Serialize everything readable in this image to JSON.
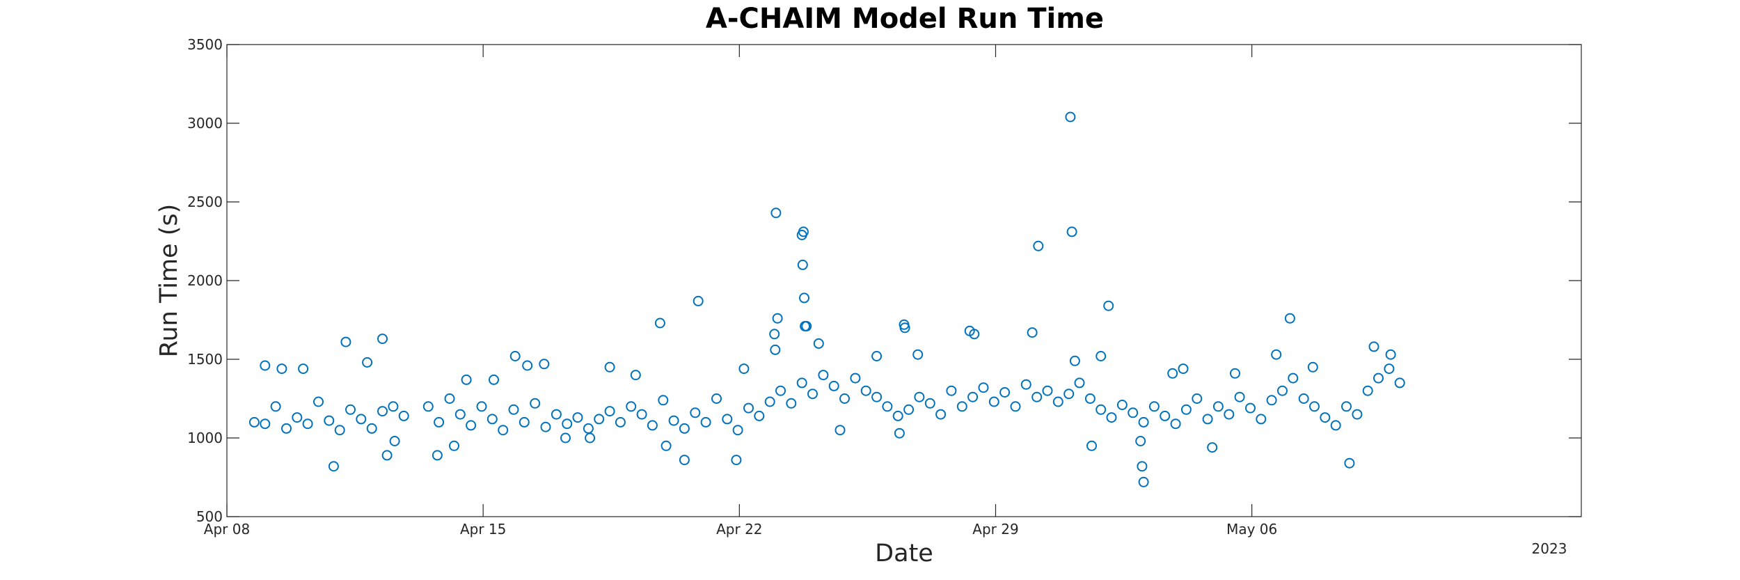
{
  "colors": {
    "marker": "#0072BD",
    "axis": "#262626",
    "background": "#ffffff"
  },
  "chart_data": {
    "type": "scatter",
    "title": "A-CHAIM Model Run Time",
    "xlabel": "Date",
    "ylabel": "Run Time (s)",
    "x_year_label": "2023",
    "xlim": [
      "2023-04-08",
      "2023-05-15"
    ],
    "ylim": [
      500,
      3500
    ],
    "x_ticks": [
      {
        "date": "2023-04-08",
        "label": "Apr 08"
      },
      {
        "date": "2023-04-15",
        "label": "Apr 15"
      },
      {
        "date": "2023-04-22",
        "label": "Apr 22"
      },
      {
        "date": "2023-04-29",
        "label": "Apr 29"
      },
      {
        "date": "2023-05-06",
        "label": "May 06"
      }
    ],
    "y_ticks": [
      500,
      1000,
      1500,
      2000,
      2500,
      3000,
      3500
    ],
    "marker": "open-circle",
    "grid": false,
    "legend": "none",
    "series": [
      {
        "points": [
          [
            "2023-04-08 18:00",
            1100
          ],
          [
            "2023-04-09 01:00",
            1090
          ],
          [
            "2023-04-09 08:00",
            1200
          ],
          [
            "2023-04-09 15:00",
            1060
          ],
          [
            "2023-04-09 22:00",
            1130
          ],
          [
            "2023-04-10 05:00",
            1090
          ],
          [
            "2023-04-10 12:00",
            1230
          ],
          [
            "2023-04-10 19:00",
            1110
          ],
          [
            "2023-04-11 02:00",
            1050
          ],
          [
            "2023-04-11 09:00",
            1180
          ],
          [
            "2023-04-11 16:00",
            1120
          ],
          [
            "2023-04-11 23:00",
            1060
          ],
          [
            "2023-04-12 06:00",
            1170
          ],
          [
            "2023-04-12 13:00",
            1200
          ],
          [
            "2023-04-12 20:00",
            1140
          ],
          [
            "2023-04-13 12:00",
            1200
          ],
          [
            "2023-04-13 19:00",
            1100
          ],
          [
            "2023-04-14 02:00",
            1250
          ],
          [
            "2023-04-14 09:00",
            1150
          ],
          [
            "2023-04-14 16:00",
            1080
          ],
          [
            "2023-04-14 23:00",
            1200
          ],
          [
            "2023-04-15 06:00",
            1120
          ],
          [
            "2023-04-15 13:00",
            1050
          ],
          [
            "2023-04-15 20:00",
            1180
          ],
          [
            "2023-04-16 03:00",
            1100
          ],
          [
            "2023-04-16 10:00",
            1220
          ],
          [
            "2023-04-16 17:00",
            1070
          ],
          [
            "2023-04-17 00:00",
            1150
          ],
          [
            "2023-04-17 07:00",
            1090
          ],
          [
            "2023-04-17 14:00",
            1130
          ],
          [
            "2023-04-17 21:00",
            1060
          ],
          [
            "2023-04-18 04:00",
            1120
          ],
          [
            "2023-04-18 11:00",
            1170
          ],
          [
            "2023-04-18 18:00",
            1100
          ],
          [
            "2023-04-19 01:00",
            1200
          ],
          [
            "2023-04-19 08:00",
            1150
          ],
          [
            "2023-04-19 15:00",
            1080
          ],
          [
            "2023-04-19 22:00",
            1240
          ],
          [
            "2023-04-20 05:00",
            1110
          ],
          [
            "2023-04-20 12:00",
            1060
          ],
          [
            "2023-04-20 19:00",
            1160
          ],
          [
            "2023-04-21 02:00",
            1100
          ],
          [
            "2023-04-21 09:00",
            1250
          ],
          [
            "2023-04-21 16:00",
            1120
          ],
          [
            "2023-04-21 23:00",
            1050
          ],
          [
            "2023-04-22 06:00",
            1190
          ],
          [
            "2023-04-22 13:00",
            1140
          ],
          [
            "2023-04-22 20:00",
            1230
          ],
          [
            "2023-04-23 03:00",
            1300
          ],
          [
            "2023-04-23 10:00",
            1220
          ],
          [
            "2023-04-23 17:00",
            1350
          ],
          [
            "2023-04-24 00:00",
            1280
          ],
          [
            "2023-04-24 07:00",
            1400
          ],
          [
            "2023-04-24 14:00",
            1330
          ],
          [
            "2023-04-24 21:00",
            1250
          ],
          [
            "2023-04-25 04:00",
            1380
          ],
          [
            "2023-04-25 11:00",
            1300
          ],
          [
            "2023-04-25 18:00",
            1260
          ],
          [
            "2023-04-26 01:00",
            1200
          ],
          [
            "2023-04-26 08:00",
            1140
          ],
          [
            "2023-04-26 15:00",
            1180
          ],
          [
            "2023-04-26 22:00",
            1260
          ],
          [
            "2023-04-27 05:00",
            1220
          ],
          [
            "2023-04-27 12:00",
            1150
          ],
          [
            "2023-04-27 19:00",
            1300
          ],
          [
            "2023-04-28 02:00",
            1200
          ],
          [
            "2023-04-28 09:00",
            1260
          ],
          [
            "2023-04-28 16:00",
            1320
          ],
          [
            "2023-04-28 23:00",
            1230
          ],
          [
            "2023-04-29 06:00",
            1290
          ],
          [
            "2023-04-29 13:00",
            1200
          ],
          [
            "2023-04-29 20:00",
            1340
          ],
          [
            "2023-04-30 03:00",
            1260
          ],
          [
            "2023-04-30 10:00",
            1300
          ],
          [
            "2023-04-30 17:00",
            1230
          ],
          [
            "2023-05-01 00:00",
            1280
          ],
          [
            "2023-05-01 07:00",
            1350
          ],
          [
            "2023-05-01 14:00",
            1250
          ],
          [
            "2023-05-01 21:00",
            1180
          ],
          [
            "2023-05-02 04:00",
            1130
          ],
          [
            "2023-05-02 11:00",
            1210
          ],
          [
            "2023-05-02 18:00",
            1160
          ],
          [
            "2023-05-03 01:00",
            1100
          ],
          [
            "2023-05-03 08:00",
            1200
          ],
          [
            "2023-05-03 15:00",
            1140
          ],
          [
            "2023-05-03 22:00",
            1090
          ],
          [
            "2023-05-04 05:00",
            1180
          ],
          [
            "2023-05-04 12:00",
            1250
          ],
          [
            "2023-05-04 19:00",
            1120
          ],
          [
            "2023-05-05 02:00",
            1200
          ],
          [
            "2023-05-05 09:00",
            1150
          ],
          [
            "2023-05-05 16:00",
            1260
          ],
          [
            "2023-05-05 23:00",
            1190
          ],
          [
            "2023-05-06 06:00",
            1120
          ],
          [
            "2023-05-06 13:00",
            1240
          ],
          [
            "2023-05-06 20:00",
            1300
          ],
          [
            "2023-05-07 03:00",
            1380
          ],
          [
            "2023-05-07 10:00",
            1250
          ],
          [
            "2023-05-07 17:00",
            1200
          ],
          [
            "2023-05-08 00:00",
            1130
          ],
          [
            "2023-05-08 07:00",
            1080
          ],
          [
            "2023-05-08 14:00",
            1200
          ],
          [
            "2023-05-08 21:00",
            1150
          ],
          [
            "2023-05-09 04:00",
            1300
          ],
          [
            "2023-05-09 11:00",
            1380
          ],
          [
            "2023-05-09 18:00",
            1440
          ],
          [
            "2023-05-10 01:00",
            1350
          ],
          [
            "2023-04-09 01:00",
            1460
          ],
          [
            "2023-04-09 12:00",
            1440
          ],
          [
            "2023-04-10 02:00",
            1440
          ],
          [
            "2023-04-10 22:00",
            820
          ],
          [
            "2023-04-11 06:00",
            1610
          ],
          [
            "2023-04-11 20:00",
            1480
          ],
          [
            "2023-04-12 06:00",
            1630
          ],
          [
            "2023-04-12 09:00",
            890
          ],
          [
            "2023-04-12 14:00",
            980
          ],
          [
            "2023-04-13 18:00",
            890
          ],
          [
            "2023-04-14 05:00",
            950
          ],
          [
            "2023-04-14 13:00",
            1370
          ],
          [
            "2023-04-15 07:00",
            1370
          ],
          [
            "2023-04-15 21:00",
            1520
          ],
          [
            "2023-04-16 05:00",
            1460
          ],
          [
            "2023-04-16 16:00",
            1470
          ],
          [
            "2023-04-17 06:00",
            1000
          ],
          [
            "2023-04-17 22:00",
            1000
          ],
          [
            "2023-04-18 11:00",
            1450
          ],
          [
            "2023-04-19 04:00",
            1400
          ],
          [
            "2023-04-19 20:00",
            1730
          ],
          [
            "2023-04-20 00:00",
            950
          ],
          [
            "2023-04-20 12:00",
            860
          ],
          [
            "2023-04-20 21:00",
            1870
          ],
          [
            "2023-04-21 22:00",
            860
          ],
          [
            "2023-04-22 03:00",
            1440
          ],
          [
            "2023-04-23 00:00",
            2430
          ],
          [
            "2023-04-22 23:00",
            1660
          ],
          [
            "2023-04-22 23:30",
            1560
          ],
          [
            "2023-04-23 01:00",
            1760
          ],
          [
            "2023-04-23 17:00",
            2290
          ],
          [
            "2023-04-23 18:00",
            2310
          ],
          [
            "2023-04-23 17:30",
            2100
          ],
          [
            "2023-04-23 18:30",
            1890
          ],
          [
            "2023-04-23 19:00",
            1710
          ],
          [
            "2023-04-23 20:00",
            1710
          ],
          [
            "2023-04-24 04:00",
            1600
          ],
          [
            "2023-04-24 18:00",
            1050
          ],
          [
            "2023-04-25 18:00",
            1520
          ],
          [
            "2023-04-26 12:00",
            1720
          ],
          [
            "2023-04-26 12:30",
            1700
          ],
          [
            "2023-04-26 21:00",
            1530
          ],
          [
            "2023-04-26 09:00",
            1030
          ],
          [
            "2023-04-28 07:00",
            1680
          ],
          [
            "2023-04-28 10:00",
            1660
          ],
          [
            "2023-04-30 00:00",
            1670
          ],
          [
            "2023-04-30 04:00",
            2220
          ],
          [
            "2023-05-01 01:00",
            3040
          ],
          [
            "2023-05-01 02:00",
            2310
          ],
          [
            "2023-05-01 04:00",
            1490
          ],
          [
            "2023-05-01 21:00",
            1520
          ],
          [
            "2023-05-01 15:00",
            950
          ],
          [
            "2023-05-02 02:00",
            1840
          ],
          [
            "2023-05-03 01:00",
            720
          ],
          [
            "2023-05-03 00:00",
            820
          ],
          [
            "2023-05-02 23:00",
            980
          ],
          [
            "2023-05-03 20:00",
            1410
          ],
          [
            "2023-05-04 03:00",
            1440
          ],
          [
            "2023-05-04 22:00",
            940
          ],
          [
            "2023-05-05 13:00",
            1410
          ],
          [
            "2023-05-06 16:00",
            1530
          ],
          [
            "2023-05-07 01:00",
            1760
          ],
          [
            "2023-05-07 16:00",
            1450
          ],
          [
            "2023-05-08 16:00",
            840
          ],
          [
            "2023-05-09 08:00",
            1580
          ],
          [
            "2023-05-09 19:00",
            1530
          ]
        ]
      }
    ]
  }
}
